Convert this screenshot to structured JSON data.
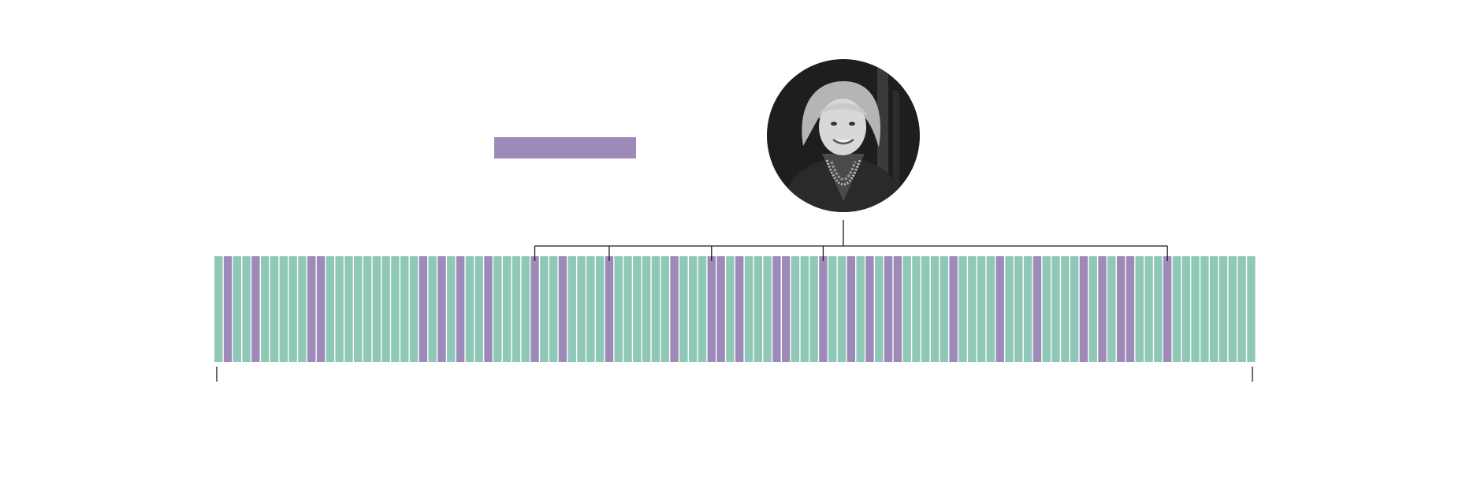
{
  "colors": {
    "highlight": "#9d8ab8",
    "default": "#8fc8b7",
    "connector": "#1a1a1a",
    "divider": "#ffffff"
  },
  "legend": {
    "swatch_color": "#9d8ab8",
    "label": ""
  },
  "portrait": {
    "kind": "grayscale-photo",
    "subject": "person"
  },
  "chart_data": {
    "type": "waffle-strip",
    "total_columns": 112,
    "highlighted_columns": [
      1,
      4,
      10,
      11,
      22,
      24,
      26,
      29,
      34,
      37,
      42,
      49,
      53,
      54,
      56,
      60,
      61,
      65,
      68,
      70,
      72,
      73,
      79,
      84,
      88,
      93,
      95,
      97,
      98,
      102
    ]
  }
}
